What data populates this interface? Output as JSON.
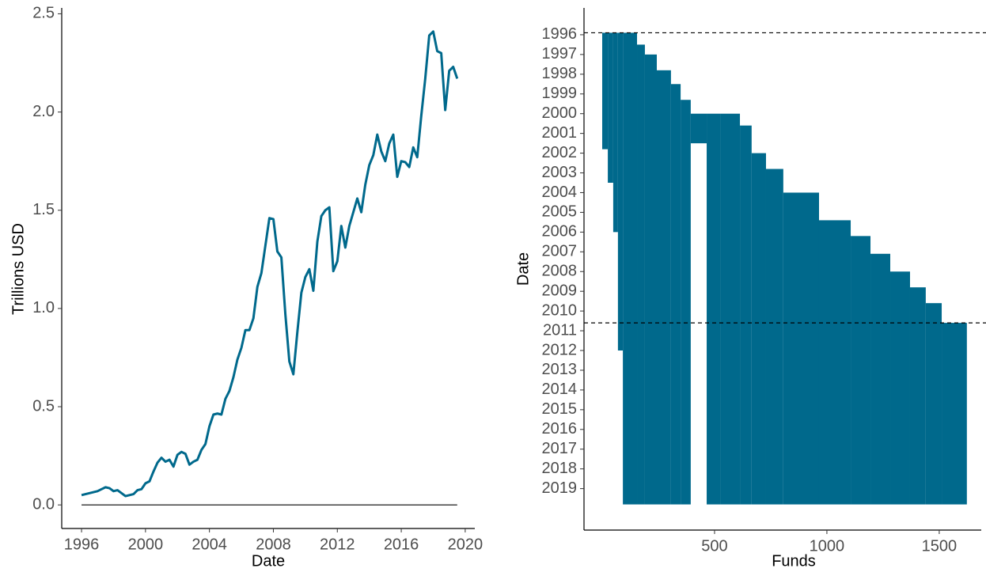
{
  "chart_data": [
    {
      "type": "line",
      "xlabel": "Date",
      "ylabel": "Trillions USD",
      "color": "#00698c",
      "x": [
        1996,
        1996.25,
        1996.5,
        1996.75,
        1997,
        1997.25,
        1997.5,
        1997.75,
        1998,
        1998.25,
        1998.5,
        1998.75,
        1999,
        1999.25,
        1999.5,
        1999.75,
        2000,
        2000.25,
        2000.5,
        2000.75,
        2001,
        2001.25,
        2001.5,
        2001.75,
        2002,
        2002.25,
        2002.5,
        2002.75,
        2003,
        2003.25,
        2003.5,
        2003.75,
        2004,
        2004.25,
        2004.5,
        2004.75,
        2005,
        2005.25,
        2005.5,
        2005.75,
        2006,
        2006.25,
        2006.5,
        2006.75,
        2007,
        2007.25,
        2007.5,
        2007.75,
        2008,
        2008.25,
        2008.5,
        2008.75,
        2009,
        2009.25,
        2009.5,
        2009.75,
        2010,
        2010.25,
        2010.5,
        2010.75,
        2011,
        2011.25,
        2011.5,
        2011.75,
        2012,
        2012.25,
        2012.5,
        2012.75,
        2013,
        2013.25,
        2013.5,
        2013.75,
        2014,
        2014.25,
        2014.5,
        2014.75,
        2015,
        2015.25,
        2015.5,
        2015.75,
        2016,
        2016.25,
        2016.5,
        2016.75,
        2017,
        2017.25,
        2017.5,
        2017.75,
        2018,
        2018.25,
        2018.5,
        2018.75,
        2019,
        2019.25,
        2019.5
      ],
      "values": [
        0.05,
        0.055,
        0.06,
        0.065,
        0.07,
        0.08,
        0.09,
        0.085,
        0.07,
        0.075,
        0.06,
        0.045,
        0.05,
        0.055,
        0.075,
        0.08,
        0.11,
        0.12,
        0.17,
        0.215,
        0.24,
        0.22,
        0.23,
        0.195,
        0.255,
        0.27,
        0.26,
        0.205,
        0.22,
        0.23,
        0.28,
        0.31,
        0.4,
        0.46,
        0.465,
        0.46,
        0.54,
        0.58,
        0.65,
        0.74,
        0.8,
        0.89,
        0.89,
        0.95,
        1.11,
        1.18,
        1.32,
        1.46,
        1.455,
        1.29,
        1.26,
        0.97,
        0.73,
        0.665,
        0.88,
        1.08,
        1.16,
        1.2,
        1.09,
        1.34,
        1.47,
        1.5,
        1.515,
        1.19,
        1.24,
        1.42,
        1.31,
        1.42,
        1.49,
        1.56,
        1.49,
        1.63,
        1.73,
        1.78,
        1.885,
        1.8,
        1.75,
        1.84,
        1.885,
        1.67,
        1.75,
        1.745,
        1.72,
        1.82,
        1.77,
        1.98,
        2.17,
        2.39,
        2.41,
        2.31,
        2.3,
        2.01,
        2.21,
        2.23,
        2.17
      ],
      "hlines": [
        0
      ],
      "xlim": [
        1994.76,
        2020.6
      ],
      "xticks": [
        1996,
        2000,
        2004,
        2008,
        2012,
        2016,
        2020
      ],
      "ylim": [
        -0.12,
        2.53
      ],
      "yticks": [
        {
          "value": 0,
          "label": "0.0"
        },
        {
          "value": 0.5,
          "label": "0.5"
        },
        {
          "value": 1,
          "label": "1.0"
        },
        {
          "value": 1.5,
          "label": "1.5"
        },
        {
          "value": 2,
          "label": "2.0"
        },
        {
          "value": 2.5,
          "label": "2.5"
        }
      ]
    },
    {
      "type": "range",
      "xlabel": "Funds",
      "ylabel": "Date",
      "color": "#00698c",
      "x_from": [
        0,
        25,
        49,
        70,
        92,
        155,
        190,
        243,
        306,
        349,
        394,
        465,
        525,
        613,
        665,
        729,
        806,
        965,
        1106,
        1194,
        1282,
        1370,
        1440,
        1511
      ],
      "x_to": [
        25,
        49,
        70,
        92,
        155,
        190,
        243,
        306,
        349,
        394,
        465,
        525,
        613,
        665,
        729,
        806,
        965,
        1106,
        1194,
        1282,
        1370,
        1440,
        1511,
        1623
      ],
      "start": [
        1995.9,
        1995.9,
        1995.9,
        1995.9,
        1995.9,
        1996.5,
        1997,
        1997.8,
        1998.5,
        1999.3,
        2000,
        2000,
        2000,
        2000.6,
        2002,
        2002.8,
        2004,
        2005.4,
        2006.2,
        2007.1,
        2008,
        2008.8,
        2009.6,
        2010.6
      ],
      "end": [
        2001.8,
        2003.5,
        2006,
        2012,
        2019.8,
        2019.8,
        2019.8,
        2019.8,
        2019.8,
        2019.8,
        2001.5,
        2019.8,
        2019.8,
        2019.8,
        2019.8,
        2019.8,
        2019.8,
        2019.8,
        2019.8,
        2019.8,
        2019.8,
        2019.8,
        2019.8,
        2019.8
      ],
      "hlines": [
        1995.9,
        2010.6
      ],
      "xlim": [
        -81,
        1687
      ],
      "xticks": [
        500,
        1000,
        1500
      ],
      "ylim": [
        2021.1,
        1994.64
      ],
      "yticks": [
        1996,
        1997,
        1998,
        1999,
        2000,
        2001,
        2002,
        2003,
        2004,
        2005,
        2006,
        2007,
        2008,
        2009,
        2010,
        2011,
        2012,
        2013,
        2014,
        2015,
        2016,
        2017,
        2018,
        2019
      ]
    }
  ]
}
